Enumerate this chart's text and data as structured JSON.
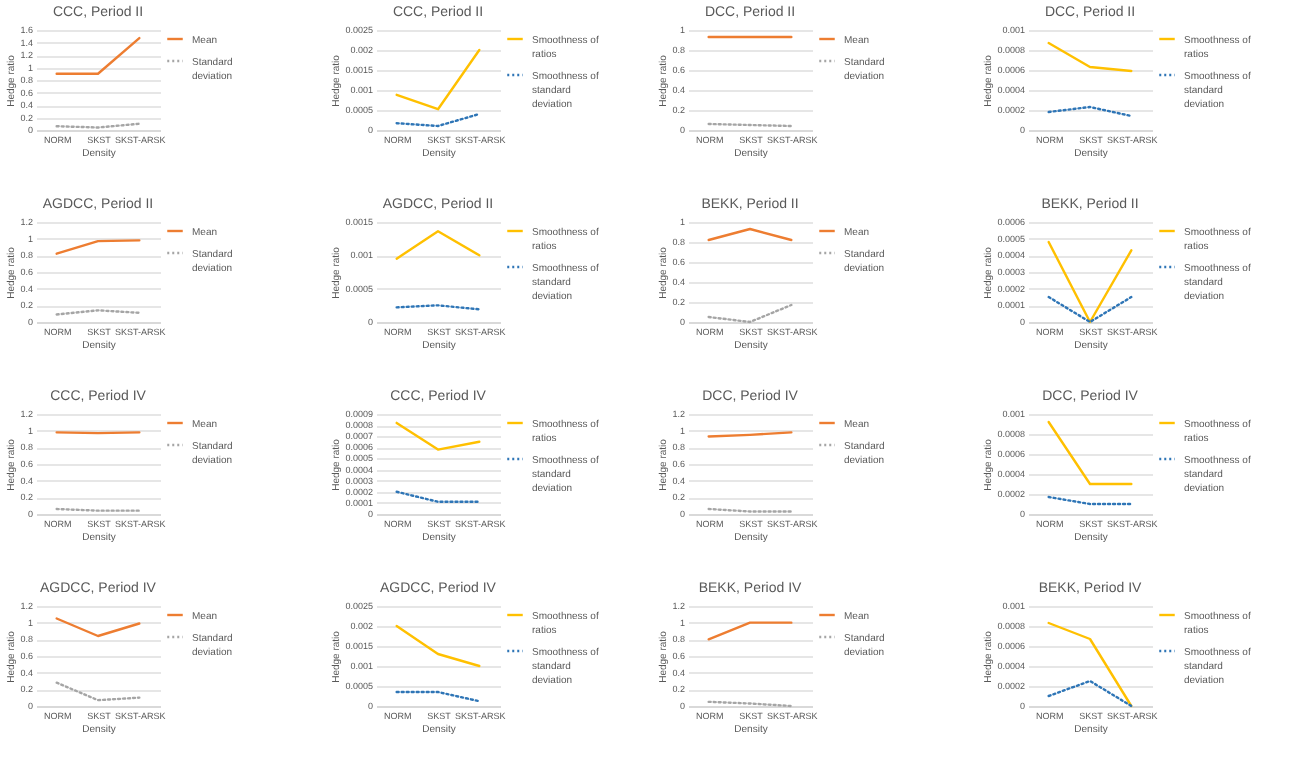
{
  "chart_data": [
    {
      "type": "line",
      "title": "CCC, Period II",
      "xlabel": "Density",
      "ylabel": "Hedge ratio",
      "categories": [
        "NORM",
        "SKST",
        "SKST-ARSK"
      ],
      "ylim": [
        0,
        1.6
      ],
      "yticks": [
        0,
        0.2,
        0.4,
        0.6,
        0.8,
        1,
        1.2,
        1.4,
        1.6
      ],
      "grid": "y",
      "legend": "right",
      "series": [
        {
          "name": "Mean",
          "color": "#ed7d31",
          "line_style": "solid",
          "values": [
            0.9,
            0.9,
            1.47
          ]
        },
        {
          "name": "Standard deviation",
          "color": "#a5a5a5",
          "line_style": "dotted",
          "values": [
            0.06,
            0.04,
            0.1
          ]
        }
      ]
    },
    {
      "type": "line",
      "title": "CCC, Period II",
      "xlabel": "Density",
      "ylabel": "Hedge ratio",
      "categories": [
        "NORM",
        "SKST",
        "SKST-ARSK"
      ],
      "ylim": [
        0,
        0.0025
      ],
      "yticks": [
        0,
        0.0005,
        0.001,
        0.0015,
        0.002,
        0.0025
      ],
      "grid": "y",
      "legend": "right",
      "series": [
        {
          "name": "Smoothness of ratios",
          "color": "#ffc000",
          "line_style": "solid",
          "values": [
            0.00088,
            0.00052,
            0.002
          ]
        },
        {
          "name": "Smoothness of standard deviation",
          "color": "#2e75b6",
          "line_style": "dotted",
          "values": [
            0.00017,
            0.0001,
            0.0004
          ]
        }
      ]
    },
    {
      "type": "line",
      "title": "DCC, Period II",
      "xlabel": "Density",
      "ylabel": "Hedge ratio",
      "categories": [
        "NORM",
        "SKST",
        "SKST-ARSK"
      ],
      "ylim": [
        0,
        1
      ],
      "yticks": [
        0,
        0.2,
        0.4,
        0.6,
        0.8,
        1
      ],
      "grid": "y",
      "legend": "right",
      "series": [
        {
          "name": "Mean",
          "color": "#ed7d31",
          "line_style": "solid",
          "values": [
            0.93,
            0.93,
            0.93
          ]
        },
        {
          "name": "Standard deviation",
          "color": "#a5a5a5",
          "line_style": "dotted",
          "values": [
            0.06,
            0.05,
            0.04
          ]
        }
      ]
    },
    {
      "type": "line",
      "title": "DCC, Period II",
      "xlabel": "Density",
      "ylabel": "Hedge ratio",
      "categories": [
        "NORM",
        "SKST",
        "SKST-ARSK"
      ],
      "ylim": [
        0,
        0.001
      ],
      "yticks": [
        0,
        0.0002,
        0.0004,
        0.0006,
        0.0008,
        0.001
      ],
      "grid": "y",
      "legend": "right",
      "series": [
        {
          "name": "Smoothness of ratios",
          "color": "#ffc000",
          "line_style": "solid",
          "values": [
            0.00087,
            0.00063,
            0.00059
          ]
        },
        {
          "name": "Smoothness of standard deviation",
          "color": "#2e75b6",
          "line_style": "dotted",
          "values": [
            0.00018,
            0.00023,
            0.00014
          ]
        }
      ]
    },
    {
      "type": "line",
      "title": "AGDCC, Period II",
      "xlabel": "Density",
      "ylabel": "Hedge ratio",
      "categories": [
        "NORM",
        "SKST",
        "SKST-ARSK"
      ],
      "ylim": [
        0,
        1.2
      ],
      "yticks": [
        0,
        0.2,
        0.4,
        0.6,
        0.8,
        1,
        1.2
      ],
      "grid": "y",
      "legend": "right",
      "series": [
        {
          "name": "Mean",
          "color": "#ed7d31",
          "line_style": "solid",
          "values": [
            0.82,
            0.97,
            0.98
          ]
        },
        {
          "name": "Standard deviation",
          "color": "#a5a5a5",
          "line_style": "dotted",
          "values": [
            0.09,
            0.14,
            0.11
          ]
        }
      ]
    },
    {
      "type": "line",
      "title": "AGDCC, Period II",
      "xlabel": "Density",
      "ylabel": "Hedge ratio",
      "categories": [
        "NORM",
        "SKST",
        "SKST-ARSK"
      ],
      "ylim": [
        0,
        0.0015
      ],
      "yticks": [
        0,
        0.0005,
        0.001,
        0.0015
      ],
      "grid": "y",
      "legend": "right",
      "series": [
        {
          "name": "Smoothness of ratios",
          "color": "#ffc000",
          "line_style": "solid",
          "values": [
            0.00095,
            0.00136,
            0.001
          ]
        },
        {
          "name": "Smoothness of standard deviation",
          "color": "#2e75b6",
          "line_style": "dotted",
          "values": [
            0.00022,
            0.00025,
            0.00019
          ]
        }
      ]
    },
    {
      "type": "line",
      "title": "BEKK, Period II",
      "xlabel": "Density",
      "ylabel": "Hedge ratio",
      "categories": [
        "NORM",
        "SKST",
        "SKST-ARSK"
      ],
      "ylim": [
        0,
        1
      ],
      "yticks": [
        0,
        0.2,
        0.4,
        0.6,
        0.8,
        1
      ],
      "grid": "y",
      "legend": "right",
      "series": [
        {
          "name": "Mean",
          "color": "#ed7d31",
          "line_style": "solid",
          "values": [
            0.82,
            0.93,
            0.82
          ]
        },
        {
          "name": "Standard deviation",
          "color": "#a5a5a5",
          "line_style": "dotted",
          "values": [
            0.05,
            0,
            0.17
          ]
        }
      ]
    },
    {
      "type": "line",
      "title": "BEKK, Period II",
      "xlabel": "Density",
      "ylabel": "Hedge ratio",
      "categories": [
        "NORM",
        "SKST",
        "SKST-ARSK"
      ],
      "ylim": [
        0,
        0.0006
      ],
      "yticks": [
        0,
        0.0001,
        0.0002,
        0.0003,
        0.0004,
        0.0005,
        0.0006
      ],
      "grid": "y",
      "legend": "right",
      "series": [
        {
          "name": "Smoothness of ratios",
          "color": "#ffc000",
          "line_style": "solid",
          "values": [
            0.00048,
            0,
            0.00043
          ]
        },
        {
          "name": "Smoothness of standard deviation",
          "color": "#2e75b6",
          "line_style": "dotted",
          "values": [
            0.00015,
            0,
            0.00015
          ]
        }
      ]
    },
    {
      "type": "line",
      "title": "CCC, Period IV",
      "xlabel": "Density",
      "ylabel": "Hedge ratio",
      "categories": [
        "NORM",
        "SKST",
        "SKST-ARSK"
      ],
      "ylim": [
        0,
        1.2
      ],
      "yticks": [
        0,
        0.2,
        0.4,
        0.6,
        0.8,
        1,
        1.2
      ],
      "grid": "y",
      "legend": "right",
      "series": [
        {
          "name": "Mean",
          "color": "#ed7d31",
          "line_style": "solid",
          "values": [
            0.98,
            0.97,
            0.98
          ]
        },
        {
          "name": "Standard deviation",
          "color": "#a5a5a5",
          "line_style": "dotted",
          "values": [
            0.06,
            0.04,
            0.04
          ]
        }
      ]
    },
    {
      "type": "line",
      "title": "CCC, Period IV",
      "xlabel": "Density",
      "ylabel": "Hedge ratio",
      "categories": [
        "NORM",
        "SKST",
        "SKST-ARSK"
      ],
      "ylim": [
        0,
        0.0009
      ],
      "yticks": [
        0,
        0.0001,
        0.0002,
        0.0003,
        0.0004,
        0.0005,
        0.0006,
        0.0007,
        0.0008,
        0.0009
      ],
      "grid": "y",
      "legend": "right",
      "series": [
        {
          "name": "Smoothness of ratios",
          "color": "#ffc000",
          "line_style": "solid",
          "values": [
            0.00082,
            0.00058,
            0.00065
          ]
        },
        {
          "name": "Smoothness of standard deviation",
          "color": "#2e75b6",
          "line_style": "dotted",
          "values": [
            0.0002,
            0.00011,
            0.00011
          ]
        }
      ]
    },
    {
      "type": "line",
      "title": "DCC, Period IV",
      "xlabel": "Density",
      "ylabel": "Hedge ratio",
      "categories": [
        "NORM",
        "SKST",
        "SKST-ARSK"
      ],
      "ylim": [
        0,
        1.2
      ],
      "yticks": [
        0,
        0.2,
        0.4,
        0.6,
        0.8,
        1,
        1.2
      ],
      "grid": "y",
      "legend": "right",
      "series": [
        {
          "name": "Mean",
          "color": "#ed7d31",
          "line_style": "solid",
          "values": [
            0.93,
            0.95,
            0.98
          ]
        },
        {
          "name": "Standard deviation",
          "color": "#a5a5a5",
          "line_style": "dotted",
          "values": [
            0.06,
            0.03,
            0.03
          ]
        }
      ]
    },
    {
      "type": "line",
      "title": "DCC, Period IV",
      "xlabel": "Density",
      "ylabel": "Hedge ratio",
      "categories": [
        "NORM",
        "SKST",
        "SKST-ARSK"
      ],
      "ylim": [
        0,
        0.001
      ],
      "yticks": [
        0,
        0.0002,
        0.0004,
        0.0006,
        0.0008,
        0.001
      ],
      "grid": "y",
      "legend": "right",
      "series": [
        {
          "name": "Smoothness of ratios",
          "color": "#ffc000",
          "line_style": "solid",
          "values": [
            0.00092,
            0.0003,
            0.0003
          ]
        },
        {
          "name": "Smoothness of standard deviation",
          "color": "#2e75b6",
          "line_style": "dotted",
          "values": [
            0.00017,
            0.0001,
            0.0001
          ]
        }
      ]
    },
    {
      "type": "line",
      "title": "AGDCC, Period IV",
      "xlabel": "Density",
      "ylabel": "Hedge ratio",
      "categories": [
        "NORM",
        "SKST",
        "SKST-ARSK"
      ],
      "ylim": [
        0,
        1.2
      ],
      "yticks": [
        0,
        0.2,
        0.4,
        0.6,
        0.8,
        1,
        1.2
      ],
      "grid": "y",
      "legend": "right",
      "series": [
        {
          "name": "Mean",
          "color": "#ed7d31",
          "line_style": "solid",
          "values": [
            1.05,
            0.84,
            0.99
          ]
        },
        {
          "name": "Standard deviation",
          "color": "#a5a5a5",
          "line_style": "dotted",
          "values": [
            0.28,
            0.07,
            0.1
          ]
        }
      ]
    },
    {
      "type": "line",
      "title": "AGDCC, Period IV",
      "xlabel": "Density",
      "ylabel": "Hedge ratio",
      "categories": [
        "NORM",
        "SKST",
        "SKST-ARSK"
      ],
      "ylim": [
        0,
        0.0025
      ],
      "yticks": [
        0,
        0.0005,
        0.001,
        0.0015,
        0.002,
        0.0025
      ],
      "grid": "y",
      "legend": "right",
      "series": [
        {
          "name": "Smoothness of ratios",
          "color": "#ffc000",
          "line_style": "solid",
          "values": [
            0.002,
            0.0013,
            0.001
          ]
        },
        {
          "name": "Smoothness of standard deviation",
          "color": "#2e75b6",
          "line_style": "dotted",
          "values": [
            0.00035,
            0.00035,
            0.00012
          ]
        }
      ]
    },
    {
      "type": "line",
      "title": "BEKK, Period IV",
      "xlabel": "Density",
      "ylabel": "Hedge ratio",
      "categories": [
        "NORM",
        "SKST",
        "SKST-ARSK"
      ],
      "ylim": [
        0,
        1.2
      ],
      "yticks": [
        0,
        0.2,
        0.4,
        0.6,
        0.8,
        1,
        1.2
      ],
      "grid": "y",
      "legend": "right",
      "series": [
        {
          "name": "Mean",
          "color": "#ed7d31",
          "line_style": "solid",
          "values": [
            0.8,
            1,
            1
          ]
        },
        {
          "name": "Standard deviation",
          "color": "#a5a5a5",
          "line_style": "dotted",
          "values": [
            0.05,
            0.03,
            0
          ]
        }
      ]
    },
    {
      "type": "line",
      "title": "BEKK, Period IV",
      "xlabel": "Density",
      "ylabel": "Hedge ratio",
      "categories": [
        "NORM",
        "SKST",
        "SKST-ARSK"
      ],
      "ylim": [
        0,
        0.001
      ],
      "yticks": [
        0,
        0.0002,
        0.0004,
        0.0006,
        0.0008,
        0.001
      ],
      "grid": "y",
      "legend": "right",
      "series": [
        {
          "name": "Smoothness of ratios",
          "color": "#ffc000",
          "line_style": "solid",
          "values": [
            0.00083,
            0.00067,
            0
          ]
        },
        {
          "name": "Smoothness of standard deviation",
          "color": "#2e75b6",
          "line_style": "dotted",
          "values": [
            0.0001,
            0.00025,
            0
          ]
        }
      ]
    }
  ]
}
